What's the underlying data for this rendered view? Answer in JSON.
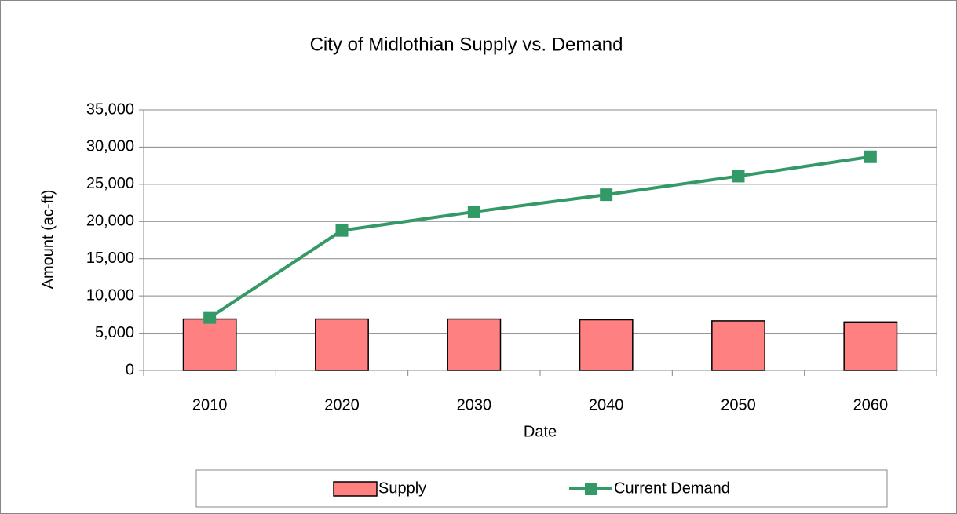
{
  "chart_data": {
    "type": "combo",
    "title": "City of Midlothian Supply vs. Demand",
    "x_label": "Date",
    "y_label": "Amount (ac-ft)",
    "categories": [
      "2010",
      "2020",
      "2030",
      "2040",
      "2050",
      "2060"
    ],
    "series": [
      {
        "name": "Supply",
        "type": "bar",
        "color": "#ff8080",
        "values": [
          6900,
          6900,
          6900,
          6800,
          6650,
          6500
        ]
      },
      {
        "name": "Current Demand",
        "type": "line",
        "color": "#339966",
        "values": [
          7100,
          18800,
          21300,
          23600,
          26100,
          28700
        ]
      }
    ],
    "ylim": [
      0,
      35000
    ],
    "yticks": [
      0,
      {
        "value": 5000,
        "label": "5,000"
      },
      {
        "value": 10000,
        "label": "10,000"
      },
      {
        "value": 15000,
        "label": "15,000"
      },
      {
        "value": 20000,
        "label": "20,000"
      },
      {
        "value": 25000,
        "label": "25,000"
      },
      {
        "value": 30000,
        "label": "30,000"
      },
      {
        "value": 35000,
        "label": "35,000"
      }
    ],
    "grid": true,
    "legend": "bottom"
  }
}
